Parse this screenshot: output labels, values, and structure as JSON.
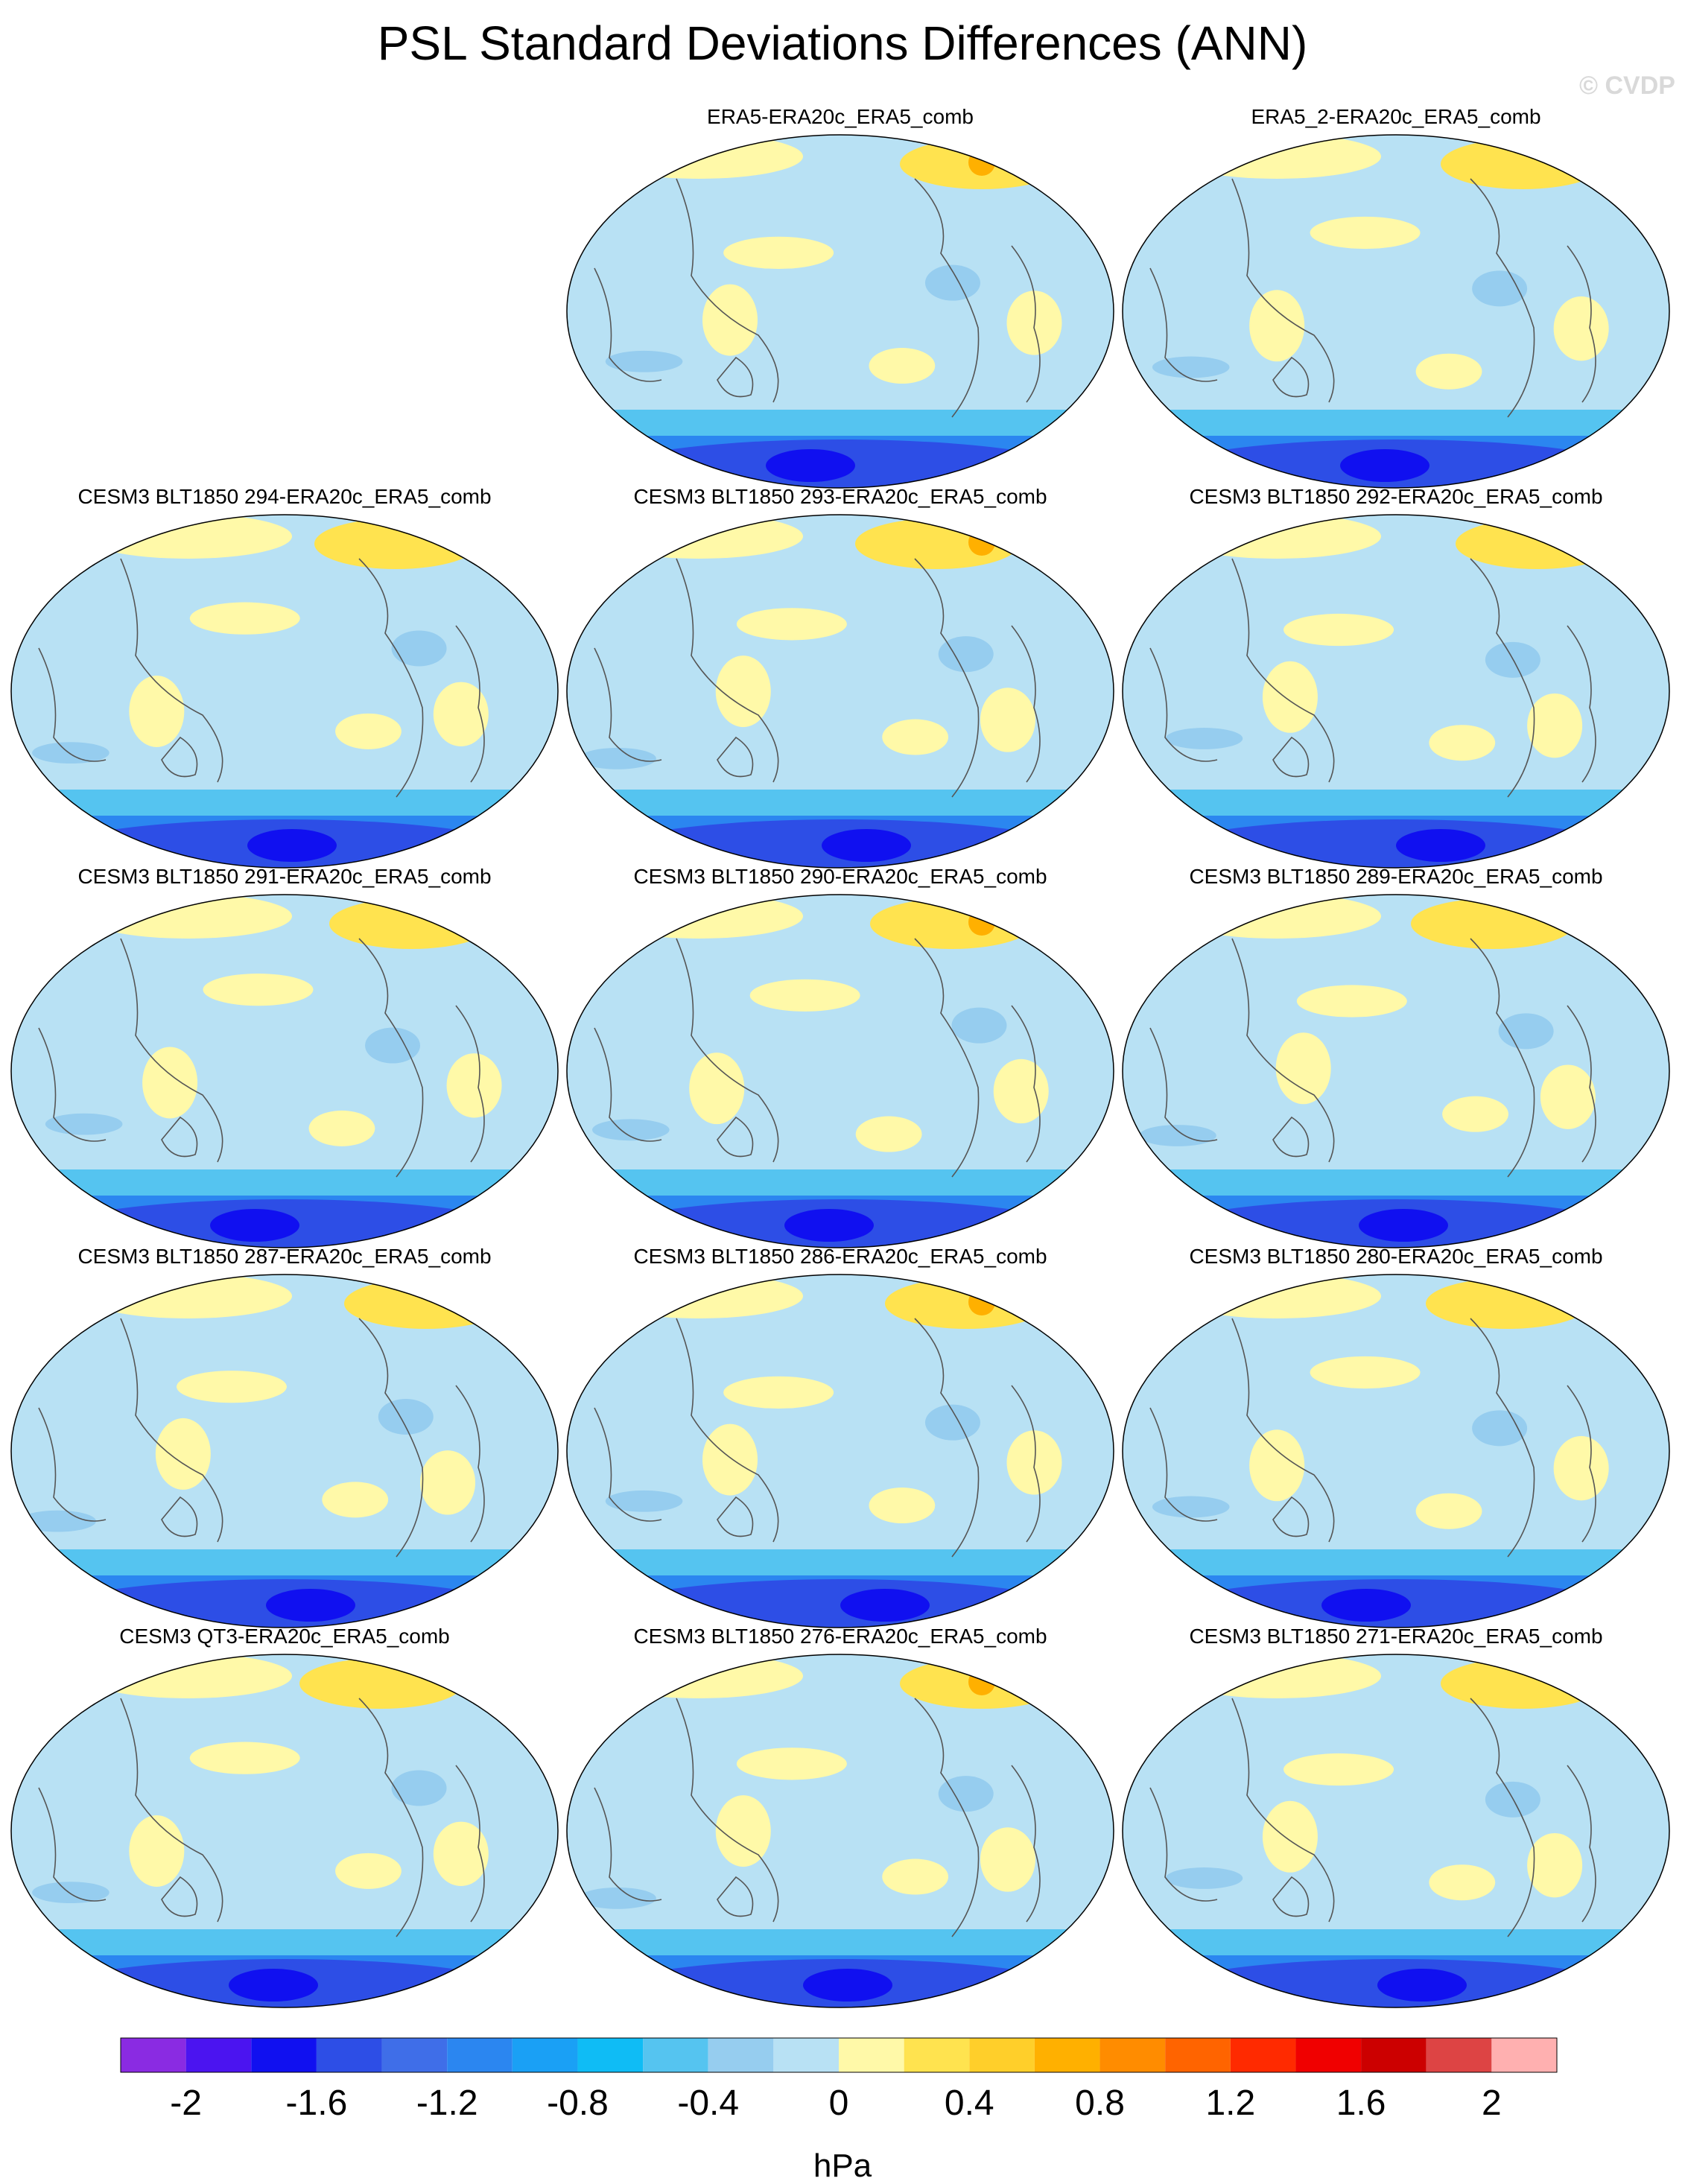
{
  "figure": {
    "title": "PSL Standard Deviations Differences (ANN)",
    "credit": "© CVDP",
    "units": "hPa"
  },
  "panels": [
    {
      "title": "ERA5-ERA20c_ERA5_comb",
      "row": 0,
      "col": 1
    },
    {
      "title": "ERA5_2-ERA20c_ERA5_comb",
      "row": 0,
      "col": 2
    },
    {
      "title": "CESM3 BLT1850 294-ERA20c_ERA5_comb",
      "row": 1,
      "col": 0
    },
    {
      "title": "CESM3 BLT1850 293-ERA20c_ERA5_comb",
      "row": 1,
      "col": 1
    },
    {
      "title": "CESM3 BLT1850 292-ERA20c_ERA5_comb",
      "row": 1,
      "col": 2
    },
    {
      "title": "CESM3 BLT1850 291-ERA20c_ERA5_comb",
      "row": 2,
      "col": 0
    },
    {
      "title": "CESM3 BLT1850 290-ERA20c_ERA5_comb",
      "row": 2,
      "col": 1
    },
    {
      "title": "CESM3 BLT1850 289-ERA20c_ERA5_comb",
      "row": 2,
      "col": 2
    },
    {
      "title": "CESM3 BLT1850 287-ERA20c_ERA5_comb",
      "row": 3,
      "col": 0
    },
    {
      "title": "CESM3 BLT1850 286-ERA20c_ERA5_comb",
      "row": 3,
      "col": 1
    },
    {
      "title": "CESM3 BLT1850 280-ERA20c_ERA5_comb",
      "row": 3,
      "col": 2
    },
    {
      "title": "CESM3 QT3-ERA20c_ERA5_comb",
      "row": 4,
      "col": 0
    },
    {
      "title": "CESM3 BLT1850 276-ERA20c_ERA5_comb",
      "row": 4,
      "col": 1
    },
    {
      "title": "CESM3 BLT1850 271-ERA20c_ERA5_comb",
      "row": 4,
      "col": 2
    }
  ],
  "colorbar": {
    "colors": [
      "#8a2be2",
      "#4b14f0",
      "#1010f0",
      "#2d4ee6",
      "#3f6ee8",
      "#2b86f0",
      "#1aa0f5",
      "#0fbcf5",
      "#55c4f0",
      "#96cdef",
      "#b8e1f4",
      "#fff9a8",
      "#ffe34f",
      "#ffcf2a",
      "#ffb000",
      "#ff8c00",
      "#ff6400",
      "#ff2a00",
      "#f00000",
      "#cc0000",
      "#dd4444",
      "#ffb0b0"
    ],
    "tick_labels": [
      "-2",
      "-1.6",
      "-1.2",
      "-0.8",
      "-0.4",
      "0",
      "0.4",
      "0.8",
      "1.2",
      "1.6",
      "2"
    ]
  }
}
